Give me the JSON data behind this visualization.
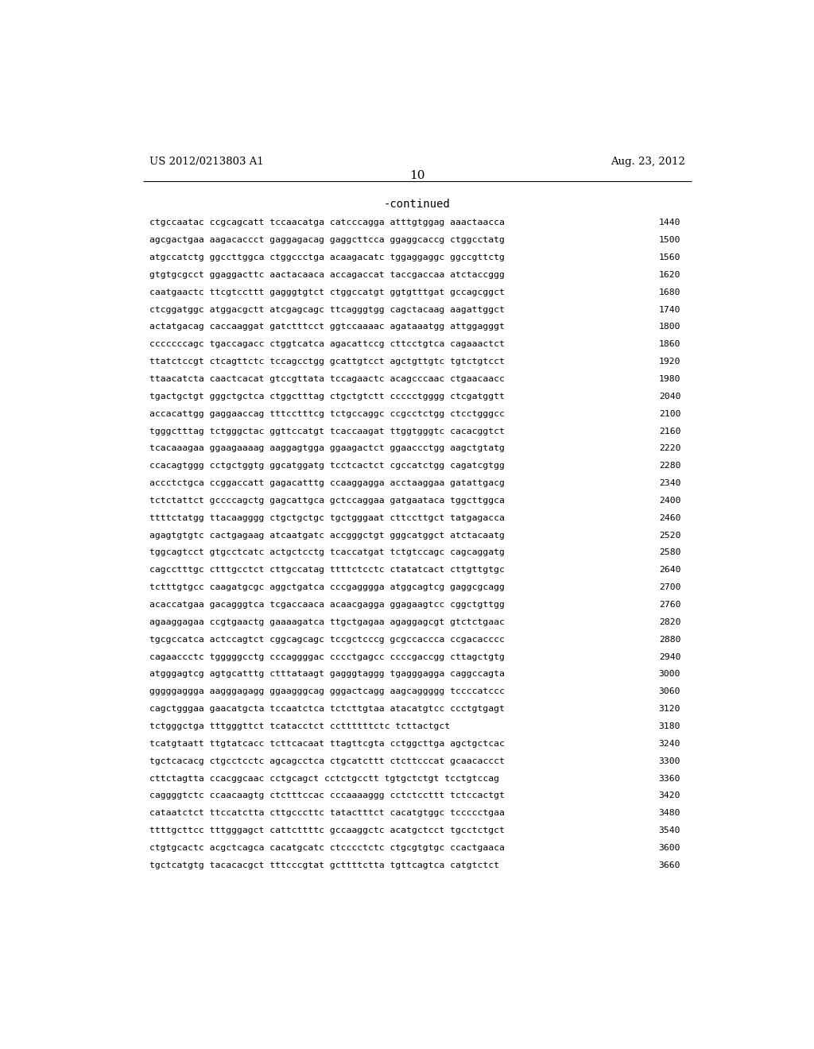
{
  "header_left": "US 2012/0213803 A1",
  "header_right": "Aug. 23, 2012",
  "page_number": "10",
  "continued_label": "-continued",
  "background_color": "#ffffff",
  "text_color": "#000000",
  "header_fontsize": 9.5,
  "page_num_fontsize": 11,
  "continued_fontsize": 10,
  "sequence_fontsize": 8.2,
  "sequence_lines": [
    [
      "ctgccaatac ccgcagcatt tccaacatga catcccagga atttgtggag aaactaacca",
      "1440"
    ],
    [
      "agcgactgaa aagacaccct gaggagacag gaggcttcca ggaggcaccg ctggcctatg",
      "1500"
    ],
    [
      "atgccatctg ggccttggca ctggccctga acaagacatc tggaggaggc ggccgttctg",
      "1560"
    ],
    [
      "gtgtgcgcct ggaggacttc aactacaaca accagaccat taccgaccaa atctaccggg",
      "1620"
    ],
    [
      "caatgaactc ttcgtccttt gagggtgtct ctggccatgt ggtgtttgat gccagcggct",
      "1680"
    ],
    [
      "ctcggatggc atggacgctt atcgagcagc ttcagggtgg cagctacaag aagattggct",
      "1740"
    ],
    [
      "actatgacag caccaaggat gatctttcct ggtccaaaac agataaatgg attggagggt",
      "1800"
    ],
    [
      "cccccccagc tgaccagacc ctggtcatca agacattccg cttcctgtca cagaaactct",
      "1860"
    ],
    [
      "ttatctccgt ctcagttctc tccagcctgg gcattgtcct agctgttgtc tgtctgtcct",
      "1920"
    ],
    [
      "ttaacatcta caactcacat gtccgttata tccagaactc acagcccaac ctgaacaacc",
      "1980"
    ],
    [
      "tgactgctgt gggctgctca ctggctttag ctgctgtctt ccccctgggg ctcgatggtt",
      "2040"
    ],
    [
      "accacattgg gaggaaccag tttcctttcg tctgccaggc ccgcctctgg ctcctgggcc",
      "2100"
    ],
    [
      "tgggctttag tctgggctac ggttccatgt tcaccaagat ttggtgggtc cacacggtct",
      "2160"
    ],
    [
      "tcacaaagaa ggaagaaaag aaggagtgga ggaagactct ggaaccctgg aagctgtatg",
      "2220"
    ],
    [
      "ccacagtggg cctgctggtg ggcatggatg tcctcactct cgccatctgg cagatcgtgg",
      "2280"
    ],
    [
      "accctctgca ccggaccatt gagacatttg ccaaggagga acctaaggaa gatattgacg",
      "2340"
    ],
    [
      "tctctattct gccccagctg gagcattgca gctccaggaa gatgaataca tggcttggca",
      "2400"
    ],
    [
      "ttttctatgg ttacaagggg ctgctgctgc tgctgggaat cttccttgct tatgagacca",
      "2460"
    ],
    [
      "agagtgtgtc cactgagaag atcaatgatc accgggctgt gggcatggct atctacaatg",
      "2520"
    ],
    [
      "tggcagtcct gtgcctcatc actgctcctg tcaccatgat tctgtccagc cagcaggatg",
      "2580"
    ],
    [
      "cagcctttgc ctttgcctct cttgccatag ttttctcctc ctatatcact cttgttgtgc",
      "2640"
    ],
    [
      "tctttgtgcc caagatgcgc aggctgatca cccgagggga atggcagtcg gaggcgcagg",
      "2700"
    ],
    [
      "acaccatgaa gacagggtca tcgaccaaca acaacgagga ggagaagtcc cggctgttgg",
      "2760"
    ],
    [
      "agaaggagaa ccgtgaactg gaaaagatca ttgctgagaa agaggagcgt gtctctgaac",
      "2820"
    ],
    [
      "tgcgccatca actccagtct cggcagcagc tccgctcccg gcgccaccca ccgacacccc",
      "2880"
    ],
    [
      "cagaaccctc tgggggcctg cccaggggac cccctgagcc ccccgaccgg cttagctgtg",
      "2940"
    ],
    [
      "atgggagtcg agtgcatttg ctttataagt gagggtaggg tgagggagga caggccagta",
      "3000"
    ],
    [
      "gggggaggga aagggagagg ggaagggcag gggactcagg aagcaggggg tccccatccc",
      "3060"
    ],
    [
      "cagctgggaa gaacatgcta tccaatctca tctcttgtaa atacatgtcc ccctgtgagt",
      "3120"
    ],
    [
      "tctgggctga tttgggttct tcatacctct ccttttttctc tcttactgct",
      "3180"
    ],
    [
      "tcatgtaatt ttgtatcacc tcttcacaat ttagttcgta cctggcttga agctgctcac",
      "3240"
    ],
    [
      "tgctcacacg ctgcctcctc agcagcctca ctgcatcttt ctcttcccat gcaacaccct",
      "3300"
    ],
    [
      "cttctagtta ccacggcaac cctgcagct cctctgcctt tgtgctctgt tcctgtccag",
      "3360"
    ],
    [
      "caggggtctc ccaacaagtg ctctttccac cccaaaaggg cctctccttt tctccactgt",
      "3420"
    ],
    [
      "cataatctct ttccatctta cttgcccttc tatactttct cacatgtggc tccccctgaa",
      "3480"
    ],
    [
      "ttttgcttcc tttgggagct cattcttttc gccaaggctc acatgctcct tgcctctgct",
      "3540"
    ],
    [
      "ctgtgcactc acgctcagca cacatgcatc ctcccctctc ctgcgtgtgc ccactgaaca",
      "3600"
    ],
    [
      "tgctcatgtg tacacacgct tttcccgtat gcttttctta tgttcagtca catgtctct",
      "3660"
    ]
  ]
}
